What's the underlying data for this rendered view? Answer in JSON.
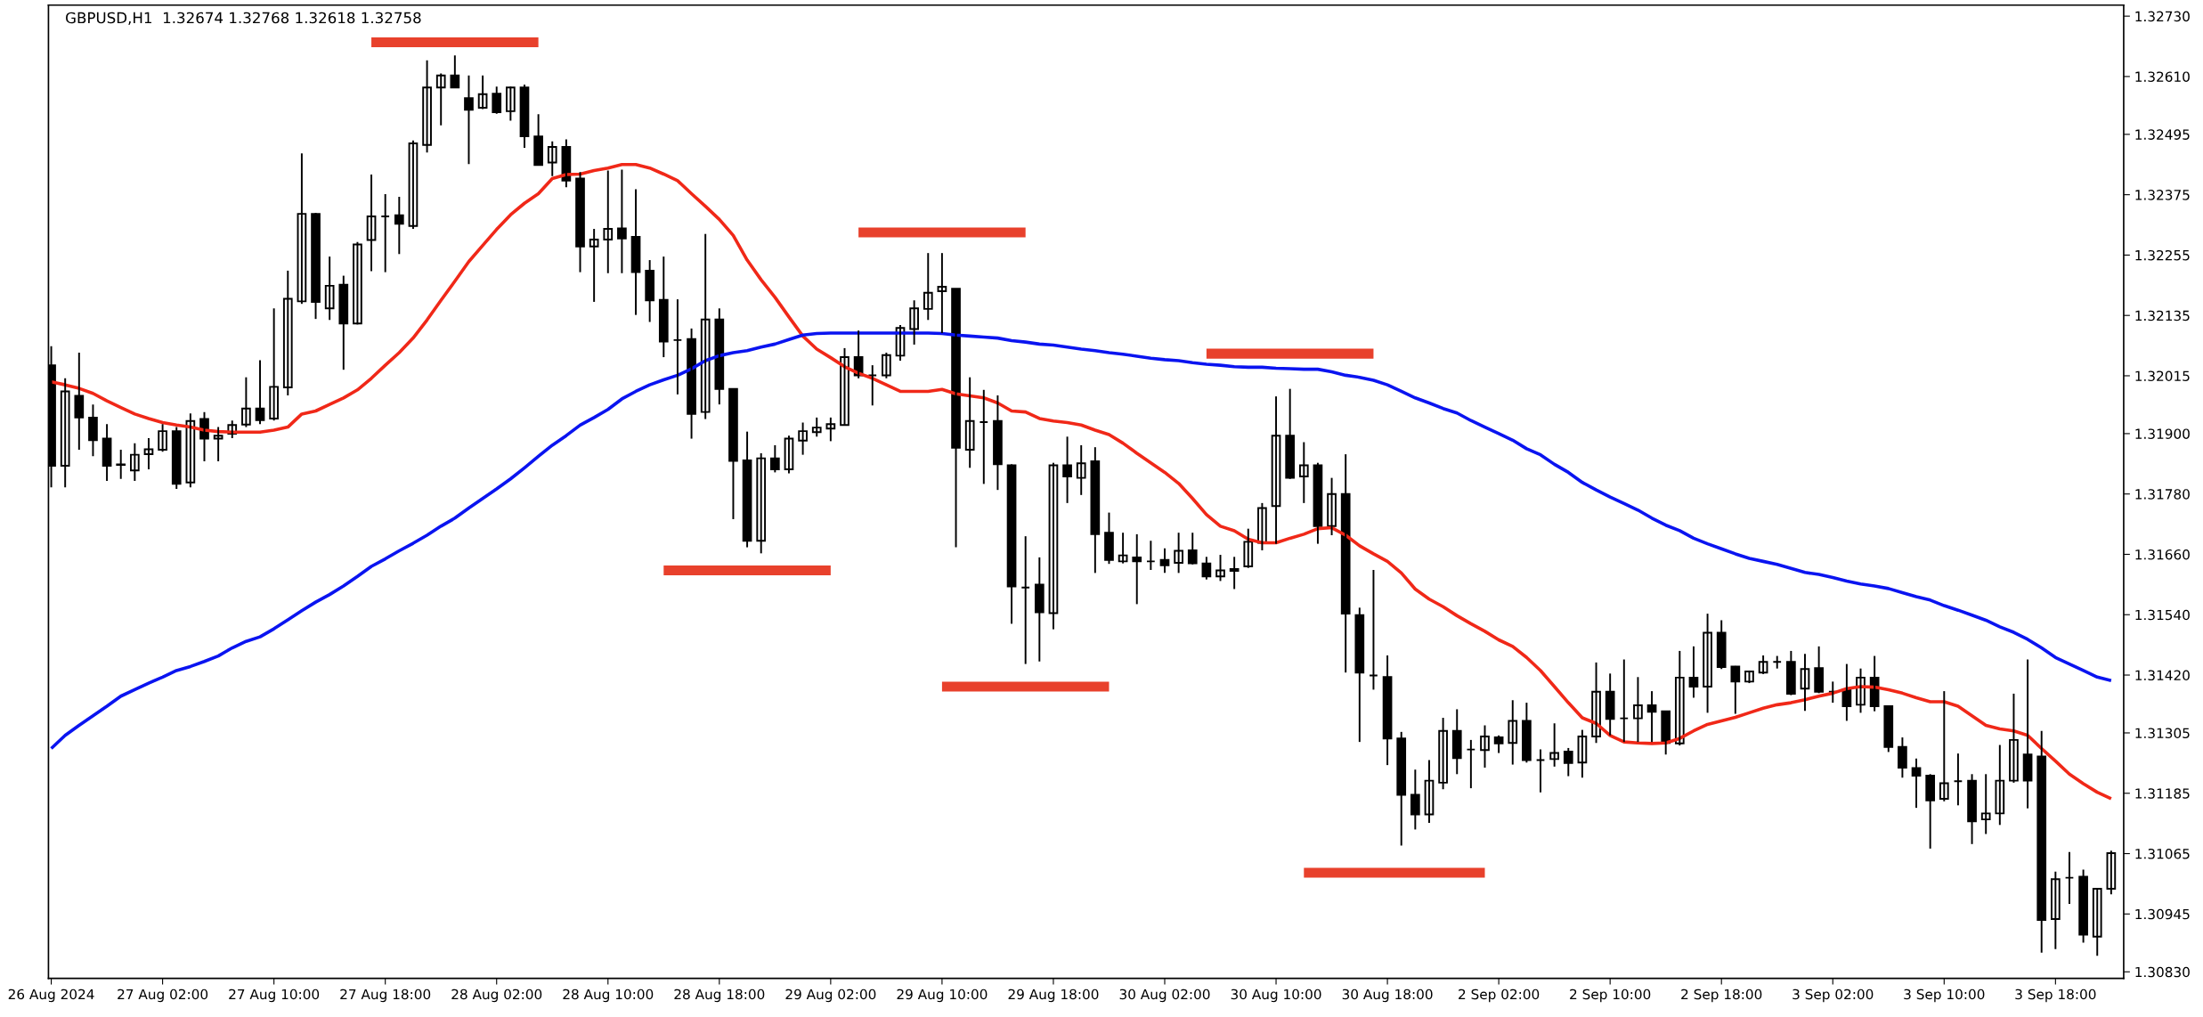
{
  "chart_data": {
    "type": "candlestick",
    "title": "GBPUSD,H1  1.32674 1.32768 1.32618 1.32758",
    "categories": [
      "26 Aug 2024",
      null,
      null,
      null,
      null,
      null,
      null,
      null,
      "27 Aug 02:00",
      null,
      null,
      null,
      null,
      null,
      null,
      null,
      "27 Aug 10:00",
      null,
      null,
      null,
      null,
      null,
      null,
      null,
      "27 Aug 18:00",
      null,
      null,
      null,
      null,
      null,
      null,
      null,
      "28 Aug 02:00",
      null,
      null,
      null,
      null,
      null,
      null,
      null,
      "28 Aug 10:00",
      null,
      null,
      null,
      null,
      null,
      null,
      null,
      "28 Aug 18:00",
      null,
      null,
      null,
      null,
      null,
      null,
      null,
      "29 Aug 02:00",
      null,
      null,
      null,
      null,
      null,
      null,
      null,
      "29 Aug 10:00",
      null,
      null,
      null,
      null,
      null,
      null,
      null,
      "29 Aug 18:00",
      null,
      null,
      null,
      null,
      null,
      null,
      null,
      "30 Aug 02:00",
      null,
      null,
      null,
      null,
      null,
      null,
      null,
      "30 Aug 10:00",
      null,
      null,
      null,
      null,
      null,
      null,
      null,
      "30 Aug 18:00",
      null,
      null,
      null,
      null,
      null,
      null,
      null,
      "2 Sep 02:00",
      null,
      null,
      null,
      null,
      null,
      null,
      null,
      "2 Sep 10:00",
      null,
      null,
      null,
      null,
      null,
      null,
      null,
      "2 Sep 18:00",
      null,
      null,
      null,
      null,
      null,
      null,
      null,
      "3 Sep 02:00",
      null,
      null,
      null,
      null,
      null,
      null,
      null,
      "3 Sep 10:00",
      null,
      null,
      null,
      null,
      null,
      null,
      null,
      "3 Sep 18:00",
      null,
      null,
      null,
      null
    ],
    "ohlc": [
      [
        1.32036,
        1.32074,
        1.31793,
        1.31836
      ],
      [
        1.31836,
        1.3201,
        1.31793,
        1.31984
      ],
      [
        1.31975,
        1.32061,
        1.31868,
        1.31932
      ],
      [
        1.31932,
        1.31958,
        1.31855,
        1.31887
      ],
      [
        1.3189,
        1.31919,
        1.31806,
        1.31836
      ],
      [
        1.31839,
        1.31868,
        1.3181,
        1.31838
      ],
      [
        1.31827,
        1.31881,
        1.31806,
        1.31858
      ],
      [
        1.31859,
        1.31891,
        1.31829,
        1.31869
      ],
      [
        1.31868,
        1.31919,
        1.31864,
        1.31905
      ],
      [
        1.31905,
        1.31913,
        1.3179,
        1.318
      ],
      [
        1.31803,
        1.3194,
        1.31793,
        1.31925
      ],
      [
        1.31929,
        1.31943,
        1.31845,
        1.3189
      ],
      [
        1.3189,
        1.31913,
        1.31845,
        1.31896
      ],
      [
        1.319,
        1.31926,
        1.31891,
        1.31917
      ],
      [
        1.31918,
        1.32012,
        1.31913,
        1.3195
      ],
      [
        1.3195,
        1.32046,
        1.31919,
        1.31927
      ],
      [
        1.3193,
        1.32149,
        1.31926,
        1.31993
      ],
      [
        1.31992,
        1.32224,
        1.31976,
        1.32168
      ],
      [
        1.32163,
        1.32457,
        1.32158,
        1.32337
      ],
      [
        1.32337,
        1.32339,
        1.32128,
        1.32162
      ],
      [
        1.32149,
        1.32252,
        1.32126,
        1.32194
      ],
      [
        1.32196,
        1.32214,
        1.32027,
        1.32119
      ],
      [
        1.32119,
        1.32281,
        1.32117,
        1.32276
      ],
      [
        1.32285,
        1.32415,
        1.32223,
        1.32332
      ],
      [
        1.32332,
        1.32376,
        1.32221,
        1.32332
      ],
      [
        1.32334,
        1.32371,
        1.32257,
        1.32317
      ],
      [
        1.32313,
        1.32483,
        1.32307,
        1.32477
      ],
      [
        1.32474,
        1.32642,
        1.32459,
        1.32588
      ],
      [
        1.32588,
        1.32616,
        1.32513,
        1.32612
      ],
      [
        1.32612,
        1.32652,
        1.32588,
        1.32588
      ],
      [
        1.32567,
        1.32612,
        1.32436,
        1.32544
      ],
      [
        1.32548,
        1.32612,
        1.32545,
        1.32575
      ],
      [
        1.32576,
        1.3259,
        1.32536,
        1.32539
      ],
      [
        1.32541,
        1.3259,
        1.32522,
        1.32588
      ],
      [
        1.32588,
        1.32594,
        1.32468,
        1.32491
      ],
      [
        1.32491,
        1.32535,
        1.32433,
        1.32434
      ],
      [
        1.32439,
        1.32481,
        1.32412,
        1.3247
      ],
      [
        1.3247,
        1.32485,
        1.3239,
        1.32403
      ],
      [
        1.32407,
        1.3242,
        1.32221,
        1.32272
      ],
      [
        1.32272,
        1.32307,
        1.32162,
        1.32286
      ],
      [
        1.32286,
        1.32423,
        1.32219,
        1.32307
      ],
      [
        1.32308,
        1.32425,
        1.32219,
        1.32288
      ],
      [
        1.32291,
        1.32386,
        1.32136,
        1.32221
      ],
      [
        1.32224,
        1.32245,
        1.32122,
        1.32165
      ],
      [
        1.32166,
        1.32252,
        1.32052,
        1.32083
      ],
      [
        1.32086,
        1.32167,
        1.31978,
        1.32086
      ],
      [
        1.32088,
        1.32109,
        1.3189,
        1.31939
      ],
      [
        1.31943,
        1.32297,
        1.31929,
        1.32127
      ],
      [
        1.32127,
        1.32149,
        1.31958,
        1.31989
      ],
      [
        1.31989,
        1.31989,
        1.3173,
        1.31846
      ],
      [
        1.31847,
        1.31904,
        1.31674,
        1.31687
      ],
      [
        1.31687,
        1.31861,
        1.31662,
        1.31851
      ],
      [
        1.31851,
        1.31877,
        1.31823,
        1.31829
      ],
      [
        1.31829,
        1.31896,
        1.31821,
        1.3189
      ],
      [
        1.31886,
        1.31922,
        1.31858,
        1.31905
      ],
      [
        1.31903,
        1.31932,
        1.31894,
        1.31912
      ],
      [
        1.3191,
        1.31932,
        1.31885,
        1.31919
      ],
      [
        1.31917,
        1.3207,
        1.31917,
        1.32052
      ],
      [
        1.32052,
        1.32105,
        1.3201,
        1.32016
      ],
      [
        1.32016,
        1.32036,
        1.31956,
        1.32016
      ],
      [
        1.32016,
        1.32061,
        1.3201,
        1.32056
      ],
      [
        1.32055,
        1.32116,
        1.32045,
        1.3211
      ],
      [
        1.32108,
        1.32165,
        1.32077,
        1.32149
      ],
      [
        1.32148,
        1.32259,
        1.32126,
        1.3218
      ],
      [
        1.32183,
        1.32259,
        1.321,
        1.32192
      ],
      [
        1.32188,
        1.32188,
        1.31674,
        1.31872
      ],
      [
        1.31868,
        1.32012,
        1.31832,
        1.31925
      ],
      [
        1.31923,
        1.31987,
        1.318,
        1.31923
      ],
      [
        1.31925,
        1.31976,
        1.31788,
        1.31839
      ],
      [
        1.31837,
        1.31839,
        1.31522,
        1.31596
      ],
      [
        1.31594,
        1.31696,
        1.31442,
        1.31594
      ],
      [
        1.316,
        1.31654,
        1.31447,
        1.31545
      ],
      [
        1.31543,
        1.31842,
        1.31511,
        1.31837
      ],
      [
        1.31837,
        1.31894,
        1.31762,
        1.31815
      ],
      [
        1.31812,
        1.31877,
        1.31778,
        1.31841
      ],
      [
        1.31845,
        1.31873,
        1.31623,
        1.317
      ],
      [
        1.31703,
        1.31743,
        1.31641,
        1.31649
      ],
      [
        1.31646,
        1.31703,
        1.31642,
        1.31658
      ],
      [
        1.31654,
        1.317,
        1.31561,
        1.31646
      ],
      [
        1.31646,
        1.31687,
        1.31629,
        1.31646
      ],
      [
        1.31649,
        1.31672,
        1.31623,
        1.31638
      ],
      [
        1.31643,
        1.31703,
        1.31623,
        1.31667
      ],
      [
        1.31668,
        1.31703,
        1.3164,
        1.31642
      ],
      [
        1.31642,
        1.31655,
        1.3161,
        1.31616
      ],
      [
        1.31616,
        1.31659,
        1.31607,
        1.31628
      ],
      [
        1.31631,
        1.31655,
        1.31591,
        1.31627
      ],
      [
        1.31636,
        1.31711,
        1.31633,
        1.31685
      ],
      [
        1.31683,
        1.31762,
        1.31668,
        1.31752
      ],
      [
        1.31756,
        1.31974,
        1.31681,
        1.31896
      ],
      [
        1.31896,
        1.31989,
        1.3181,
        1.31812
      ],
      [
        1.31815,
        1.31883,
        1.31762,
        1.31837
      ],
      [
        1.31837,
        1.31842,
        1.31681,
        1.31716
      ],
      [
        1.31716,
        1.31812,
        1.31698,
        1.3178
      ],
      [
        1.3178,
        1.31859,
        1.31425,
        1.31542
      ],
      [
        1.31539,
        1.31554,
        1.31287,
        1.31425
      ],
      [
        1.31419,
        1.31629,
        1.31391,
        1.31419
      ],
      [
        1.31416,
        1.31459,
        1.31241,
        1.31294
      ],
      [
        1.31294,
        1.31307,
        1.31081,
        1.31182
      ],
      [
        1.31182,
        1.31232,
        1.31113,
        1.31143
      ],
      [
        1.31143,
        1.31251,
        1.31126,
        1.3121
      ],
      [
        1.31206,
        1.31335,
        1.31193,
        1.31309
      ],
      [
        1.31309,
        1.31352,
        1.31223,
        1.31255
      ],
      [
        1.31272,
        1.31291,
        1.31195,
        1.31272
      ],
      [
        1.31271,
        1.3132,
        1.31236,
        1.31298
      ],
      [
        1.31296,
        1.313,
        1.31265,
        1.31284
      ],
      [
        1.31285,
        1.3137,
        1.31242,
        1.31329
      ],
      [
        1.31329,
        1.31365,
        1.31246,
        1.31251
      ],
      [
        1.31251,
        1.31272,
        1.31187,
        1.31251
      ],
      [
        1.31253,
        1.31324,
        1.31238,
        1.31265
      ],
      [
        1.31268,
        1.31275,
        1.31219,
        1.31245
      ],
      [
        1.31246,
        1.31311,
        1.31216,
        1.31298
      ],
      [
        1.31298,
        1.31445,
        1.31285,
        1.31387
      ],
      [
        1.31387,
        1.31423,
        1.313,
        1.31333
      ],
      [
        1.31334,
        1.31451,
        1.31287,
        1.31334
      ],
      [
        1.31334,
        1.31416,
        1.31287,
        1.3136
      ],
      [
        1.3136,
        1.31388,
        1.31287,
        1.31347
      ],
      [
        1.31348,
        1.31348,
        1.31262,
        1.31285
      ],
      [
        1.31284,
        1.31468,
        1.3128,
        1.31415
      ],
      [
        1.31415,
        1.31477,
        1.31375,
        1.31397
      ],
      [
        1.31397,
        1.31542,
        1.31345,
        1.31504
      ],
      [
        1.31504,
        1.31529,
        1.31432,
        1.31436
      ],
      [
        1.31437,
        1.31438,
        1.31343,
        1.31407
      ],
      [
        1.31407,
        1.31429,
        1.31404,
        1.31427
      ],
      [
        1.31425,
        1.31459,
        1.31422,
        1.31446
      ],
      [
        1.31446,
        1.31458,
        1.31433,
        1.31446
      ],
      [
        1.31446,
        1.31468,
        1.3138,
        1.31383
      ],
      [
        1.31393,
        1.31462,
        1.31349,
        1.31432
      ],
      [
        1.31434,
        1.31477,
        1.31384,
        1.31387
      ],
      [
        1.31387,
        1.31407,
        1.31365,
        1.31387
      ],
      [
        1.31391,
        1.31442,
        1.31329,
        1.31358
      ],
      [
        1.31361,
        1.31433,
        1.31345,
        1.31415
      ],
      [
        1.31415,
        1.31458,
        1.31348,
        1.31358
      ],
      [
        1.31358,
        1.31358,
        1.31267,
        1.31277
      ],
      [
        1.31277,
        1.31296,
        1.31216,
        1.31236
      ],
      [
        1.31235,
        1.31254,
        1.31156,
        1.3122
      ],
      [
        1.3122,
        1.31223,
        1.31075,
        1.31171
      ],
      [
        1.31174,
        1.31388,
        1.31169,
        1.31205
      ],
      [
        1.31209,
        1.31264,
        1.31161,
        1.31209
      ],
      [
        1.3121,
        1.31223,
        1.31084,
        1.31129
      ],
      [
        1.31133,
        1.31223,
        1.31104,
        1.31145
      ],
      [
        1.31145,
        1.31281,
        1.31122,
        1.3121
      ],
      [
        1.3121,
        1.31383,
        1.31206,
        1.31291
      ],
      [
        1.31262,
        1.31451,
        1.31155,
        1.3121
      ],
      [
        1.31258,
        1.31309,
        1.30868,
        1.30933
      ],
      [
        1.30935,
        1.31029,
        1.30875,
        1.31014
      ],
      [
        1.31017,
        1.31068,
        1.30965,
        1.31017
      ],
      [
        1.31019,
        1.31033,
        1.30888,
        1.30904
      ],
      [
        1.309,
        1.30996,
        1.30862,
        1.30995
      ],
      [
        1.30995,
        1.31071,
        1.30984,
        1.31066
      ]
    ],
    "series": [
      {
        "type": "line",
        "color": "#f02818",
        "values": [
          1.32003,
          1.31997,
          1.3199,
          1.3198,
          1.31965,
          1.31952,
          1.31939,
          1.3193,
          1.31922,
          1.31917,
          1.31913,
          1.31907,
          1.31904,
          1.31903,
          1.31903,
          1.31903,
          1.31907,
          1.31913,
          1.31939,
          1.31945,
          1.31958,
          1.31971,
          1.31987,
          1.3201,
          1.32036,
          1.32061,
          1.3209,
          1.32126,
          1.32165,
          1.32203,
          1.32242,
          1.32274,
          1.32306,
          1.32335,
          1.32358,
          1.32377,
          1.32407,
          1.32415,
          1.32416,
          1.32423,
          1.32428,
          1.32435,
          1.32435,
          1.32428,
          1.32416,
          1.32403,
          1.32377,
          1.32352,
          1.32326,
          1.32294,
          1.32245,
          1.32206,
          1.32171,
          1.32132,
          1.32094,
          1.32068,
          1.32051,
          1.32033,
          1.3202,
          1.3201,
          1.31997,
          1.31984,
          1.31984,
          1.31984,
          1.31988,
          1.31979,
          1.31975,
          1.31971,
          1.31961,
          1.31945,
          1.31943,
          1.3193,
          1.31925,
          1.31922,
          1.31917,
          1.31907,
          1.31898,
          1.31881,
          1.31861,
          1.31842,
          1.31823,
          1.31801,
          1.31771,
          1.31739,
          1.31716,
          1.31707,
          1.3169,
          1.31683,
          1.31683,
          1.31692,
          1.317,
          1.31711,
          1.31713,
          1.31698,
          1.31677,
          1.31661,
          1.31646,
          1.31623,
          1.31591,
          1.31571,
          1.31556,
          1.31538,
          1.31522,
          1.31507,
          1.3149,
          1.31477,
          1.31455,
          1.31429,
          1.31397,
          1.31365,
          1.31335,
          1.31324,
          1.313,
          1.31287,
          1.31285,
          1.31284,
          1.31285,
          1.31294,
          1.31309,
          1.31322,
          1.31329,
          1.31336,
          1.31345,
          1.31354,
          1.31361,
          1.31365,
          1.31371,
          1.31378,
          1.31384,
          1.31393,
          1.31397,
          1.31396,
          1.31391,
          1.31384,
          1.31375,
          1.31367,
          1.31367,
          1.31358,
          1.31339,
          1.3132,
          1.31313,
          1.31309,
          1.313,
          1.31274,
          1.31249,
          1.31223,
          1.31204,
          1.31187,
          1.31174
        ]
      },
      {
        "type": "line",
        "color": "#0a14f0",
        "values": [
          1.31274,
          1.313,
          1.3132,
          1.31339,
          1.31358,
          1.31378,
          1.31391,
          1.31404,
          1.31416,
          1.31429,
          1.31437,
          1.31447,
          1.31458,
          1.31474,
          1.31487,
          1.31496,
          1.31512,
          1.3153,
          1.31548,
          1.31565,
          1.3158,
          1.31597,
          1.31616,
          1.31636,
          1.31651,
          1.31667,
          1.31682,
          1.31698,
          1.31716,
          1.31732,
          1.31752,
          1.31771,
          1.3179,
          1.3181,
          1.31832,
          1.31855,
          1.31877,
          1.31896,
          1.31917,
          1.31932,
          1.31948,
          1.31969,
          1.31984,
          1.31997,
          1.32007,
          1.32016,
          1.32029,
          1.32045,
          1.32055,
          1.32061,
          1.32065,
          1.32072,
          1.32078,
          1.32087,
          1.32096,
          1.32099,
          1.321,
          1.321,
          1.321,
          1.321,
          1.321,
          1.321,
          1.321,
          1.321,
          1.32099,
          1.32096,
          1.32094,
          1.32092,
          1.3209,
          1.32085,
          1.32082,
          1.32078,
          1.32076,
          1.32072,
          1.32068,
          1.32065,
          1.32061,
          1.32058,
          1.32054,
          1.3205,
          1.32047,
          1.32045,
          1.32041,
          1.32038,
          1.32036,
          1.32033,
          1.32032,
          1.32032,
          1.3203,
          1.32029,
          1.32028,
          1.32028,
          1.32023,
          1.32016,
          1.32012,
          1.32006,
          1.31997,
          1.31984,
          1.31971,
          1.31961,
          1.3195,
          1.31941,
          1.31926,
          1.31913,
          1.319,
          1.31887,
          1.3187,
          1.31858,
          1.31839,
          1.31823,
          1.31803,
          1.31788,
          1.31774,
          1.31761,
          1.31748,
          1.31732,
          1.31718,
          1.31707,
          1.31692,
          1.31681,
          1.31671,
          1.31661,
          1.31652,
          1.31646,
          1.3164,
          1.31632,
          1.31624,
          1.3162,
          1.31614,
          1.31607,
          1.31601,
          1.31597,
          1.31592,
          1.31584,
          1.31576,
          1.31569,
          1.31558,
          1.31549,
          1.31539,
          1.31529,
          1.31516,
          1.31505,
          1.31491,
          1.31474,
          1.31455,
          1.31442,
          1.31429,
          1.31416,
          1.31409
        ]
      },
      {
        "type": "line",
        "color": "#e8412c",
        "values": [
          null,
          null,
          null,
          null,
          null,
          null,
          null,
          null,
          null,
          null,
          null,
          null,
          null,
          null,
          null,
          null,
          null,
          null,
          null,
          null,
          null,
          null,
          null,
          1.32678,
          1.32678,
          1.32678,
          1.32678,
          1.32678,
          1.32678,
          1.32678,
          1.32678,
          1.32678,
          1.32678,
          1.32678,
          1.32678,
          1.32678,
          null,
          null,
          null,
          null,
          null,
          null,
          null,
          null,
          null,
          null,
          null,
          null,
          null,
          null,
          null,
          null,
          null,
          null,
          null,
          null,
          null,
          null,
          1.323,
          1.323,
          1.323,
          1.323,
          1.323,
          1.323,
          1.323,
          1.323,
          1.323,
          1.323,
          1.323,
          1.323,
          1.323,
          null,
          null,
          null,
          null,
          null,
          null,
          null,
          null,
          null,
          null,
          null,
          null,
          1.32059,
          1.32059,
          1.32059,
          1.32059,
          1.32059,
          1.32059,
          1.32059,
          1.32059,
          1.32059,
          1.32059,
          1.32059,
          1.32059,
          1.32059,
          null,
          null,
          null,
          null,
          null,
          null,
          null,
          null,
          null,
          null,
          null,
          null,
          null,
          null,
          null,
          null,
          null,
          null,
          null,
          null,
          null,
          null,
          null,
          null,
          null,
          null,
          null,
          null,
          null,
          null,
          null,
          null,
          null,
          null,
          null,
          null,
          null,
          null,
          null,
          null,
          null,
          null,
          null,
          null,
          null,
          null,
          null,
          null,
          null,
          null,
          null,
          null,
          null
        ]
      },
      {
        "type": "line",
        "color": "#e8412c",
        "values": [
          null,
          null,
          null,
          null,
          null,
          null,
          null,
          null,
          null,
          null,
          null,
          null,
          null,
          null,
          null,
          null,
          null,
          null,
          null,
          null,
          null,
          null,
          null,
          null,
          null,
          null,
          null,
          null,
          null,
          null,
          null,
          null,
          null,
          null,
          null,
          null,
          null,
          null,
          null,
          null,
          null,
          null,
          null,
          null,
          1.31628,
          1.31628,
          1.31628,
          1.31628,
          1.31628,
          1.31628,
          1.31628,
          1.31628,
          1.31628,
          1.31628,
          1.31628,
          1.31628,
          1.31628,
          null,
          null,
          null,
          null,
          null,
          null,
          null,
          1.31397,
          1.31397,
          1.31397,
          1.31397,
          1.31397,
          1.31397,
          1.31397,
          1.31397,
          1.31397,
          1.31397,
          1.31397,
          1.31397,
          1.31397,
          null,
          null,
          null,
          null,
          null,
          null,
          null,
          null,
          null,
          null,
          null,
          null,
          null,
          1.31027,
          1.31027,
          1.31027,
          1.31027,
          1.31027,
          1.31027,
          1.31027,
          1.31027,
          1.31027,
          1.31027,
          1.31027,
          1.31027,
          1.31027,
          1.31027,
          null,
          null,
          null,
          null,
          null,
          null,
          null,
          null,
          null,
          null,
          null,
          null,
          null,
          null,
          null,
          null,
          null,
          null,
          null,
          null,
          null,
          null,
          null,
          null,
          null,
          null,
          null,
          null,
          null,
          null,
          null,
          null,
          null,
          null,
          null,
          null,
          null,
          null,
          null,
          null,
          null,
          null,
          null,
          null,
          null
        ]
      }
    ],
    "ylim": [
      1.30817,
      1.32752
    ],
    "yticks": [
      {
        "value": 1.3083,
        "label": "1.30830"
      },
      1.30945,
      1.31065,
      1.31185,
      1.31305,
      {
        "value": 1.3142,
        "label": "1.31420"
      },
      {
        "value": 1.3154,
        "label": "1.31540"
      },
      {
        "value": 1.3166,
        "label": "1.31660"
      },
      {
        "value": 1.3178,
        "label": "1.31780"
      },
      {
        "value": 1.319,
        "label": "1.31900"
      },
      1.32015,
      1.32135,
      1.32255,
      1.32375,
      1.32495,
      {
        "value": 1.3261,
        "label": "1.32610"
      },
      {
        "value": 1.3273,
        "label": "1.32730"
      }
    ],
    "grid": false,
    "legend": false
  }
}
